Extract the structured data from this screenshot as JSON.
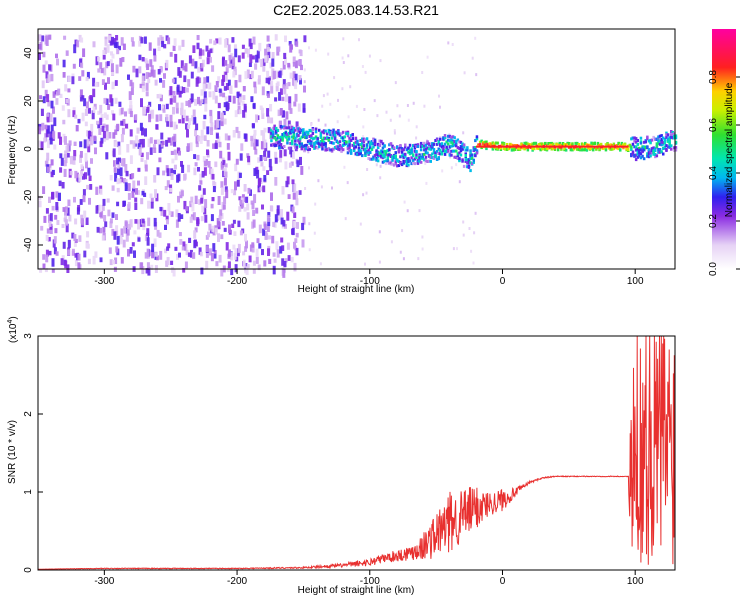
{
  "figure_title": "C2E2.2025.083.14.53.R21",
  "colors": {
    "snr_line": "#e8302f",
    "axis": "#000000",
    "background": "#ffffff"
  },
  "chart_data": [
    {
      "type": "heatmap",
      "title": "C2E2.2025.083.14.53.R21",
      "xlabel": "Height of straight line (km)",
      "ylabel": "Frequency (Hz)",
      "xlim": [
        -350,
        130
      ],
      "ylim": [
        -50,
        50
      ],
      "xticks": [
        -300,
        -200,
        -100,
        0,
        100
      ],
      "yticks": [
        -40,
        -20,
        0,
        20,
        40
      ],
      "colorbar": {
        "label": "Normalized spectral amplitude",
        "range": [
          0.0,
          1.0
        ],
        "ticks": [
          "0.0",
          "0.2",
          "0.4",
          "0.6",
          "0.8"
        ],
        "colormap": "white-purple-blue-cyan-green-yellow-red-magenta"
      },
      "features": [
        {
          "name": "noise",
          "x_range": [
            -350,
            -150
          ],
          "freq_range": [
            -50,
            48
          ],
          "amplitude": 0.1
        },
        {
          "name": "signal_ridge",
          "points": [
            [
              -170,
              5
            ],
            [
              -140,
              4
            ],
            [
              -120,
              3
            ],
            [
              -100,
              0
            ],
            [
              -80,
              -3
            ],
            [
              -60,
              -2
            ],
            [
              -40,
              2
            ],
            [
              -25,
              -5
            ],
            [
              -20,
              2
            ],
            [
              0,
              1
            ],
            [
              40,
              1
            ],
            [
              90,
              1
            ],
            [
              100,
              0
            ],
            [
              115,
              1
            ],
            [
              130,
              4
            ]
          ]
        },
        {
          "name": "steady_band",
          "x_range": [
            -20,
            95
          ],
          "freq": 1,
          "amplitude": 0.9
        }
      ]
    },
    {
      "type": "line",
      "xlabel": "Height of straight line (km)",
      "ylabel": "SNR (10 * v/v)",
      "yscale_label": "(x10",
      "yscale_exp": "4",
      "xlim": [
        -350,
        130
      ],
      "ylim": [
        0,
        3
      ],
      "xticks": [
        -300,
        -200,
        -100,
        0,
        100
      ],
      "yticks": [
        0,
        1,
        2,
        3
      ],
      "series": [
        {
          "x": [
            -350,
            -300,
            -250,
            -200,
            -150,
            -120,
            -100,
            -90,
            -80,
            -70,
            -60,
            -50,
            -40,
            -30,
            -20,
            -10,
            0,
            10,
            20,
            30,
            40,
            60,
            80,
            95,
            100,
            110,
            120,
            130
          ],
          "y": [
            0.01,
            0.02,
            0.02,
            0.02,
            0.03,
            0.06,
            0.1,
            0.15,
            0.18,
            0.22,
            0.3,
            0.45,
            0.6,
            0.7,
            0.8,
            0.85,
            0.9,
            1.0,
            1.12,
            1.18,
            1.2,
            1.2,
            1.2,
            1.2,
            1.3,
            1.4,
            1.4,
            1.4
          ],
          "noise_envelope": [
            0.0,
            0.01,
            0.01,
            0.01,
            0.02,
            0.05,
            0.1,
            0.12,
            0.15,
            0.2,
            0.35,
            0.6,
            0.8,
            0.7,
            0.6,
            0.3,
            0.3,
            0.1,
            0.03,
            0.02,
            0.01,
            0.01,
            0.01,
            0.01,
            1.4,
            1.6,
            1.6,
            1.5
          ]
        }
      ]
    }
  ]
}
